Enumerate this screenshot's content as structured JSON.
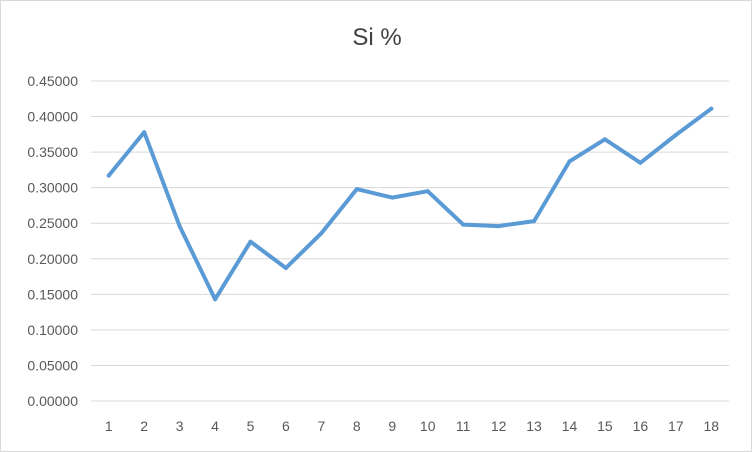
{
  "chart_data": {
    "type": "line",
    "title": "Si %",
    "xlabel": "",
    "ylabel": "",
    "categories": [
      "1",
      "2",
      "3",
      "4",
      "5",
      "6",
      "7",
      "8",
      "9",
      "10",
      "11",
      "12",
      "13",
      "14",
      "15",
      "16",
      "17",
      "18"
    ],
    "series": [
      {
        "values": [
          0.317,
          0.378,
          0.246,
          0.143,
          0.224,
          0.187,
          0.236,
          0.298,
          0.286,
          0.295,
          0.248,
          0.246,
          0.253,
          0.337,
          0.368,
          0.335,
          0.374,
          0.411
        ]
      }
    ],
    "ylim": [
      0,
      0.45
    ],
    "yticks": [
      "0.00000",
      "0.05000",
      "0.10000",
      "0.15000",
      "0.20000",
      "0.25000",
      "0.30000",
      "0.35000",
      "0.40000",
      "0.45000"
    ],
    "grid": true,
    "legend": "none",
    "colors": {
      "series": "#5b9bd5",
      "grid": "#d9d9d9",
      "text": "#595959",
      "title": "#404040"
    }
  }
}
